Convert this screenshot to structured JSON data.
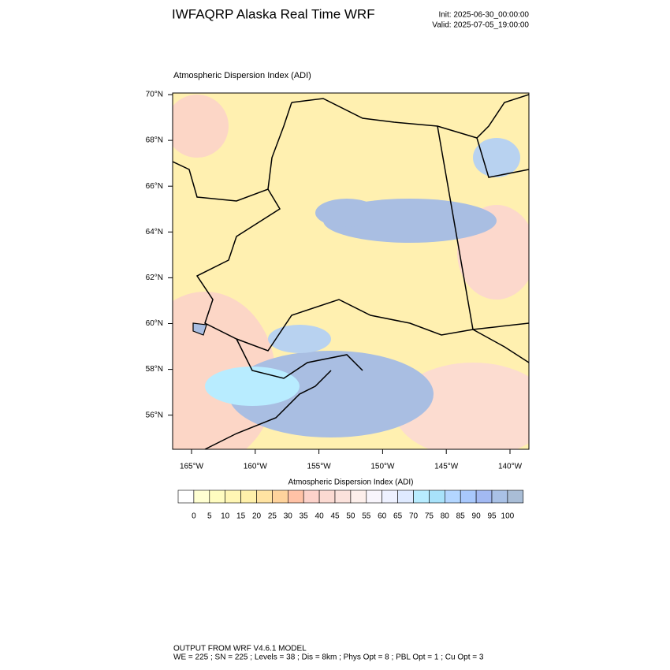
{
  "header": {
    "title": "IWFAQRP Alaska Real Time WRF",
    "init": "Init: 2025-06-30_00:00:00",
    "valid": "Valid: 2025-07-05_19:00:00"
  },
  "map": {
    "title": "Atmospheric Dispersion Index   (ADI)",
    "lat_labels": [
      "70°N",
      "68°N",
      "66°N",
      "64°N",
      "62°N",
      "60°N",
      "58°N",
      "56°N"
    ],
    "lon_labels": [
      "165°W",
      "160°W",
      "155°W",
      "150°W",
      "145°W",
      "140°W"
    ]
  },
  "colorbar": {
    "title": "Atmospheric Dispersion Index  (ADI)",
    "labels": [
      "0",
      "5",
      "10",
      "15",
      "20",
      "25",
      "30",
      "35",
      "40",
      "45",
      "50",
      "55",
      "60",
      "65",
      "70",
      "75",
      "80",
      "85",
      "90",
      "95",
      "100"
    ],
    "colors": [
      "#ffffff",
      "#ffffd2",
      "#fffcc0",
      "#fff6b4",
      "#fff0aa",
      "#ffe3a2",
      "#ffd39c",
      "#ffc2a6",
      "#fcd2ca",
      "#fbdad2",
      "#fbe2dc",
      "#fdefeb",
      "#f8f5fc",
      "#eef1ff",
      "#dfeaff",
      "#b8ecff",
      "#a8e2fa",
      "#b3d6ff",
      "#a8c8fc",
      "#a2b9f2",
      "#a9c1e6",
      "#a9bdd6"
    ]
  },
  "footer": {
    "line1": "OUTPUT FROM WRF V4.6.1 MODEL",
    "line2": "WE = 225 ; SN = 225 ; Levels = 38 ; Dis = 8km ; Phys Opt = 8 ; PBL Opt = 1 ; Cu Opt = 3"
  }
}
